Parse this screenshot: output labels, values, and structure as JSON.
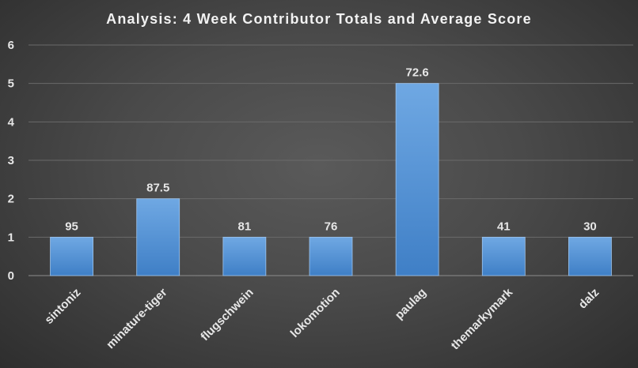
{
  "chart_data": {
    "type": "bar",
    "title": "Analysis:  4 Week Contributor Totals and Average Score",
    "xlabel": "",
    "ylabel": "",
    "categories": [
      "sintoniz",
      "minature-tiger",
      "flugschwein",
      "lokomotion",
      "paulag",
      "themarkymark",
      "dalz"
    ],
    "values": [
      1,
      2,
      1,
      1,
      5,
      1,
      1
    ],
    "data_labels": [
      "95",
      "87.5",
      "81",
      "76",
      "72.6",
      "41",
      "30"
    ],
    "ylim": [
      0,
      6
    ],
    "yticks": [
      "0",
      "1",
      "2",
      "3",
      "4",
      "5",
      "6"
    ],
    "grid": true,
    "legend": "none",
    "colors": {
      "bar_top": "#6fa8e3",
      "bar_bottom": "#3f7fc6",
      "bar_edge": "#9ec5ee",
      "text": "#e6e6e6",
      "gridline": "#6a6a6a"
    }
  }
}
